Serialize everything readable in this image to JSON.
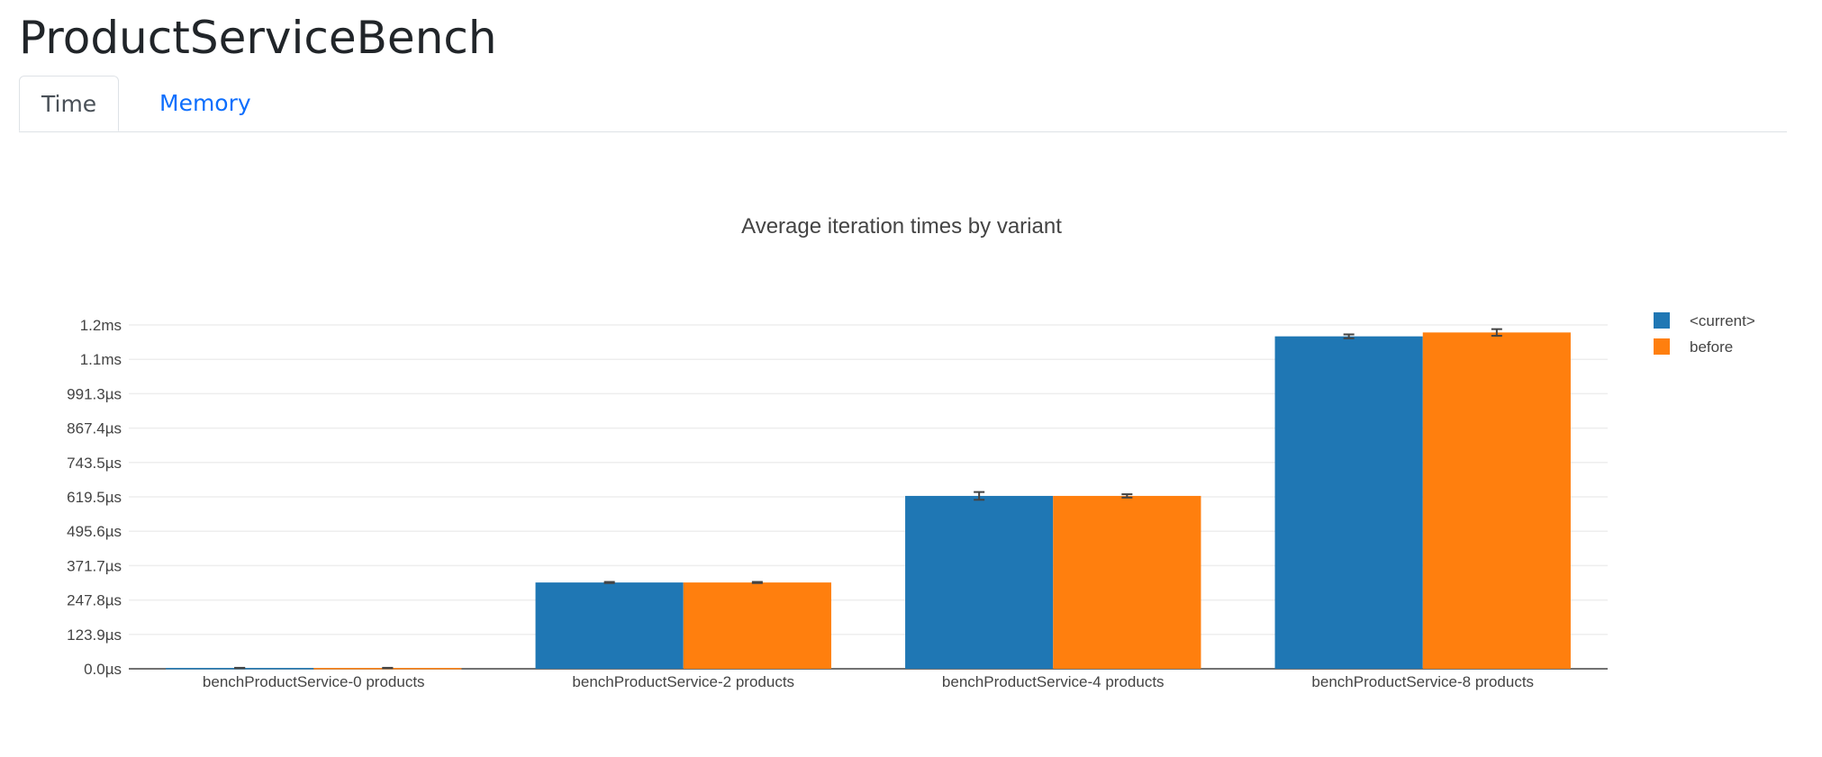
{
  "page": {
    "title": "ProductServiceBench"
  },
  "tabs": [
    {
      "label": "Time",
      "active": true
    },
    {
      "label": "Memory",
      "active": false
    }
  ],
  "chart_data": {
    "type": "bar",
    "title": "Average iteration times by variant",
    "xlabel": "",
    "ylabel": "",
    "categories": [
      "benchProductService-0 products",
      "benchProductService-2 products",
      "benchProductService-4 products",
      "benchProductService-8 products"
    ],
    "series": [
      {
        "name": "<current>",
        "color": "#1f77b4",
        "values_us": [
          3,
          311,
          623,
          1198
        ],
        "errors_us": [
          0.5,
          2,
          14,
          7
        ]
      },
      {
        "name": "before",
        "color": "#ff7f0e",
        "values_us": [
          3,
          311,
          623,
          1212
        ],
        "errors_us": [
          0.5,
          2,
          6,
          12
        ]
      }
    ],
    "y_ticks": [
      {
        "value": 0,
        "label": "0.0µs"
      },
      {
        "value": 123.9,
        "label": "123.9µs"
      },
      {
        "value": 247.8,
        "label": "247.8µs"
      },
      {
        "value": 371.7,
        "label": "371.7µs"
      },
      {
        "value": 495.6,
        "label": "495.6µs"
      },
      {
        "value": 619.5,
        "label": "619.5µs"
      },
      {
        "value": 743.5,
        "label": "743.5µs"
      },
      {
        "value": 867.4,
        "label": "867.4µs"
      },
      {
        "value": 991.3,
        "label": "991.3µs"
      },
      {
        "value": 1115.2,
        "label": "1.1ms"
      },
      {
        "value": 1239.1,
        "label": "1.2ms"
      }
    ],
    "ylim": [
      0,
      1239.1
    ],
    "grid": true,
    "legend_position": "top-right"
  }
}
